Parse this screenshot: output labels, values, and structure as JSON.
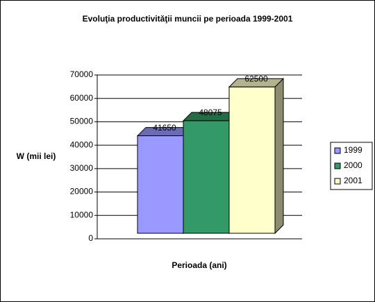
{
  "chart_data": {
    "type": "bar3d",
    "title": "Evoluţia productivităţii muncii pe perioada 1999-2001",
    "ylabel": "W (mii lei)",
    "xlabel": "Perioada (ani)",
    "categories": [
      null
    ],
    "series": [
      {
        "name": "1999",
        "color": "#9999ff",
        "values": [
          41650
        ]
      },
      {
        "name": "2000",
        "color": "#339966",
        "values": [
          48075
        ]
      },
      {
        "name": "2001",
        "color": "#ffffcc",
        "values": [
          62500
        ]
      }
    ],
    "ylim": [
      0,
      70000
    ],
    "yticks": [
      0,
      10000,
      20000,
      30000,
      40000,
      50000,
      60000,
      70000
    ],
    "grid": true,
    "legend": "right"
  }
}
